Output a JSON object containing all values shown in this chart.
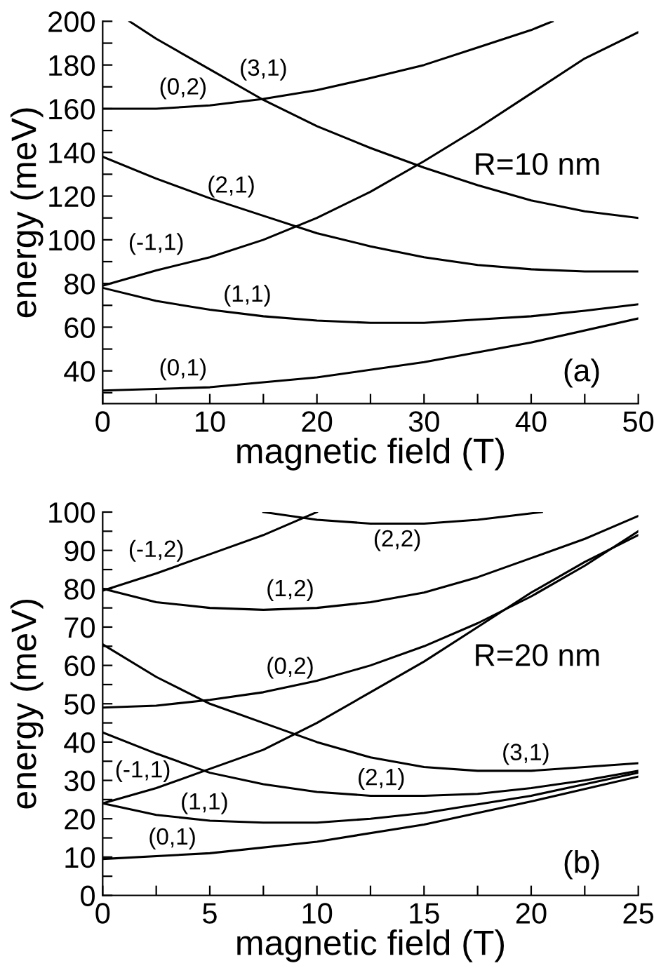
{
  "chart_data": [
    {
      "type": "line",
      "xlabel": "magnetic field (T)",
      "ylabel": "energy (meV)",
      "xlim": [
        0,
        50
      ],
      "ylim": [
        25,
        200
      ],
      "grid": false,
      "legend": false,
      "marker": "none",
      "line_style": "solid",
      "xticks": [
        0,
        {
          "value": 5,
          "label": null
        },
        10,
        {
          "value": 15,
          "label": null
        },
        20,
        {
          "value": 25,
          "label": null
        },
        30,
        {
          "value": 35,
          "label": null
        },
        40,
        {
          "value": 45,
          "label": null
        },
        50
      ],
      "yticks": [
        {
          "value": 30,
          "label": null
        },
        40,
        {
          "value": 50,
          "label": null
        },
        60,
        {
          "value": 70,
          "label": null
        },
        80,
        {
          "value": 90,
          "label": null
        },
        100,
        {
          "value": 110,
          "label": null
        },
        120,
        {
          "value": 130,
          "label": null
        },
        140,
        {
          "value": 150,
          "label": null
        },
        160,
        {
          "value": 170,
          "label": null
        },
        180,
        {
          "value": 190,
          "label": null
        },
        200
      ],
      "series": [
        {
          "name": "(0,1)",
          "color": "#000000",
          "x": [
            0,
            10,
            20,
            30,
            40,
            50
          ],
          "values": [
            31,
            32.5,
            37,
            44,
            53,
            64
          ]
        },
        {
          "name": "(1,1)",
          "color": "#000000",
          "x": [
            0,
            5,
            10,
            15,
            20,
            25,
            30,
            35,
            40,
            45,
            50
          ],
          "values": [
            78,
            72,
            68,
            65,
            63,
            62,
            62,
            63.5,
            65,
            67.5,
            70.5
          ]
        },
        {
          "name": "(-1,1)",
          "color": "#000000",
          "x": [
            0,
            5,
            10,
            15,
            20,
            25,
            30,
            35,
            40,
            45,
            50
          ],
          "values": [
            79,
            86,
            92,
            100,
            110,
            122,
            136,
            151,
            167,
            183,
            195
          ]
        },
        {
          "name": "(2,1)",
          "color": "#000000",
          "x": [
            0,
            5,
            10,
            15,
            20,
            25,
            30,
            35,
            40,
            45,
            50
          ],
          "values": [
            138,
            128,
            119,
            111,
            103,
            97,
            92,
            88.5,
            86.5,
            85.5,
            85.5
          ]
        },
        {
          "name": "(3,1)",
          "color": "#000000",
          "x": [
            2.5,
            5,
            10,
            15,
            20,
            25,
            30,
            35,
            40,
            45,
            50
          ],
          "values": [
            200,
            192,
            178,
            164,
            152,
            142,
            133,
            125,
            118,
            113,
            110
          ]
        },
        {
          "name": "(0,2)",
          "color": "#000000",
          "x": [
            0,
            5,
            10,
            15,
            20,
            25,
            30,
            35,
            40,
            42
          ],
          "values": [
            160,
            160,
            161.5,
            164.5,
            168.5,
            174,
            180,
            188,
            196,
            200
          ]
        }
      ],
      "annotations": [
        "R=10 nm",
        "(a)"
      ]
    },
    {
      "type": "line",
      "xlabel": "magnetic field (T)",
      "ylabel": "energy (meV)",
      "xlim": [
        0,
        25
      ],
      "ylim": [
        0,
        100
      ],
      "grid": false,
      "legend": false,
      "marker": "none",
      "line_style": "solid",
      "xticks": [
        0,
        {
          "value": 2.5,
          "label": null
        },
        5,
        {
          "value": 7.5,
          "label": null
        },
        10,
        {
          "value": 12.5,
          "label": null
        },
        15,
        {
          "value": 17.5,
          "label": null
        },
        20,
        {
          "value": 22.5,
          "label": null
        },
        25
      ],
      "yticks": [
        0,
        {
          "value": 5,
          "label": null
        },
        10,
        {
          "value": 15,
          "label": null
        },
        20,
        {
          "value": 25,
          "label": null
        },
        30,
        {
          "value": 35,
          "label": null
        },
        40,
        {
          "value": 45,
          "label": null
        },
        50,
        {
          "value": 55,
          "label": null
        },
        60,
        {
          "value": 65,
          "label": null
        },
        70,
        {
          "value": 75,
          "label": null
        },
        80,
        {
          "value": 85,
          "label": null
        },
        90,
        {
          "value": 95,
          "label": null
        },
        100
      ],
      "series": [
        {
          "name": "(0,1)",
          "color": "#000000",
          "x": [
            0,
            5,
            10,
            15,
            20,
            25
          ],
          "values": [
            9.5,
            11,
            14,
            18.5,
            24.5,
            31
          ]
        },
        {
          "name": "(1,1)",
          "color": "#000000",
          "x": [
            0,
            2.5,
            5,
            7.5,
            10,
            12.5,
            15,
            20,
            25
          ],
          "values": [
            24,
            21,
            19.5,
            19,
            19,
            20,
            21.5,
            26,
            32
          ]
        },
        {
          "name": "(-1,1)",
          "color": "#000000",
          "x": [
            0,
            2.5,
            5,
            7.5,
            10,
            12.5,
            15,
            17.5,
            20,
            22.5,
            25
          ],
          "values": [
            24,
            28,
            33,
            38,
            45,
            53,
            61,
            70,
            79,
            87,
            94
          ]
        },
        {
          "name": "(2,1)",
          "color": "#000000",
          "x": [
            0,
            2.5,
            5,
            7.5,
            10,
            12.5,
            15,
            17.5,
            20,
            22.5,
            25
          ],
          "values": [
            42.5,
            37,
            32,
            29,
            27,
            26,
            26,
            26.5,
            28,
            30,
            32.5
          ]
        },
        {
          "name": "(3,1)",
          "color": "#000000",
          "x": [
            0,
            2.5,
            5,
            7.5,
            10,
            12.5,
            15,
            17.5,
            20,
            22.5,
            25
          ],
          "values": [
            65.5,
            57,
            50,
            45,
            40,
            36,
            33.5,
            32.5,
            32.5,
            33.5,
            34.5
          ]
        },
        {
          "name": "(0,2)",
          "color": "#000000",
          "x": [
            0,
            2.5,
            5,
            7.5,
            10,
            12.5,
            15,
            17.5,
            20,
            22.5,
            25
          ],
          "values": [
            49,
            49.5,
            51,
            53,
            56,
            60,
            65,
            71,
            78,
            86,
            95
          ]
        },
        {
          "name": "(1,2)",
          "color": "#000000",
          "x": [
            0,
            2.5,
            5,
            7.5,
            10,
            12.5,
            15,
            17.5,
            20,
            22.5,
            25
          ],
          "values": [
            80,
            76.5,
            75,
            74.5,
            75,
            76.5,
            79,
            83,
            88,
            93,
            99
          ]
        },
        {
          "name": "(-1,2)",
          "color": "#000000",
          "x": [
            0,
            2.5,
            5,
            7.5,
            10
          ],
          "values": [
            79.5,
            84,
            89,
            94,
            100
          ]
        },
        {
          "name": "(2,2)",
          "color": "#000000",
          "x": [
            7.5,
            10,
            12.5,
            15,
            17.5,
            20.5
          ],
          "values": [
            100,
            98,
            97,
            97,
            98,
            100
          ]
        }
      ],
      "annotations": [
        "R=20 nm",
        "(b)"
      ]
    }
  ]
}
